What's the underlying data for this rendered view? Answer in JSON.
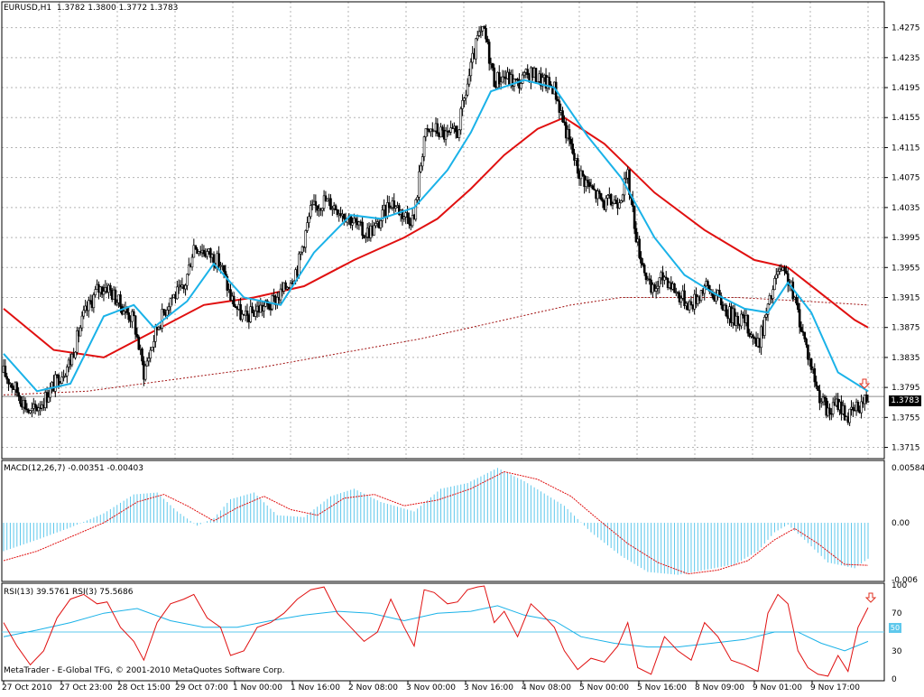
{
  "chart_data": [
    {
      "type": "candlestick",
      "symbol_title": "EURUSD,H1",
      "ohlc_readout": "1.3782 1.3800 1.3772 1.3783",
      "last_price_label": "1.3783",
      "y_ticks": [
        "1.4275",
        "1.4235",
        "1.4195",
        "1.4155",
        "1.4115",
        "1.4075",
        "1.4035",
        "1.3995",
        "1.3955",
        "1.3915",
        "1.3875",
        "1.3835",
        "1.3795",
        "1.3755",
        "1.3715"
      ],
      "ylim": [
        1.37,
        1.4295
      ],
      "grid": true,
      "series": [
        {
          "name": "fast MA",
          "color": "#1ab2e8"
        },
        {
          "name": "slow MA",
          "color": "#e01010"
        },
        {
          "name": "long MA",
          "color": "#a01010"
        }
      ],
      "close_path": [
        [
          0,
          1.3815
        ],
        [
          8,
          1.379
        ],
        [
          16,
          1.376
        ],
        [
          24,
          1.3778
        ],
        [
          32,
          1.3805
        ],
        [
          40,
          1.383
        ],
        [
          48,
          1.389
        ],
        [
          56,
          1.3925
        ],
        [
          62,
          1.393
        ],
        [
          70,
          1.3905
        ],
        [
          78,
          1.3885
        ],
        [
          84,
          1.3815
        ],
        [
          92,
          1.3875
        ],
        [
          100,
          1.3915
        ],
        [
          108,
          1.3925
        ],
        [
          114,
          1.3985
        ],
        [
          122,
          1.3975
        ],
        [
          130,
          1.396
        ],
        [
          136,
          1.3915
        ],
        [
          144,
          1.3885
        ],
        [
          152,
          1.39
        ],
        [
          160,
          1.3905
        ],
        [
          168,
          1.3925
        ],
        [
          176,
          1.3955
        ],
        [
          184,
          1.403
        ],
        [
          192,
          1.4045
        ],
        [
          200,
          1.4035
        ],
        [
          208,
          1.402
        ],
        [
          216,
          1.4
        ],
        [
          224,
          1.401
        ],
        [
          232,
          1.4045
        ],
        [
          240,
          1.4025
        ],
        [
          246,
          1.402
        ],
        [
          252,
          1.413
        ],
        [
          258,
          1.414
        ],
        [
          266,
          1.413
        ],
        [
          272,
          1.4135
        ],
        [
          278,
          1.42
        ],
        [
          284,
          1.426
        ],
        [
          288,
          1.427
        ],
        [
          294,
          1.4205
        ],
        [
          300,
          1.421
        ],
        [
          308,
          1.42
        ],
        [
          316,
          1.4215
        ],
        [
          322,
          1.4205
        ],
        [
          330,
          1.4195
        ],
        [
          336,
          1.4145
        ],
        [
          344,
          1.4085
        ],
        [
          352,
          1.406
        ],
        [
          360,
          1.404
        ],
        [
          368,
          1.4045
        ],
        [
          374,
          1.4075
        ],
        [
          380,
          1.3985
        ],
        [
          388,
          1.392
        ],
        [
          396,
          1.3945
        ],
        [
          404,
          1.392
        ],
        [
          412,
          1.3905
        ],
        [
          420,
          1.393
        ],
        [
          428,
          1.3915
        ],
        [
          436,
          1.389
        ],
        [
          444,
          1.3885
        ],
        [
          452,
          1.385
        ],
        [
          458,
          1.39
        ],
        [
          464,
          1.395
        ],
        [
          470,
          1.394
        ],
        [
          476,
          1.3895
        ],
        [
          482,
          1.384
        ],
        [
          488,
          1.379
        ],
        [
          494,
          1.376
        ],
        [
          500,
          1.3775
        ],
        [
          506,
          1.3755
        ],
        [
          512,
          1.377
        ],
        [
          518,
          1.3783
        ]
      ],
      "fast_ma": [
        [
          0,
          1.384
        ],
        [
          20,
          1.379
        ],
        [
          40,
          1.38
        ],
        [
          60,
          1.389
        ],
        [
          78,
          1.3905
        ],
        [
          90,
          1.3875
        ],
        [
          110,
          1.391
        ],
        [
          126,
          1.396
        ],
        [
          144,
          1.3915
        ],
        [
          166,
          1.3905
        ],
        [
          186,
          1.3975
        ],
        [
          208,
          1.4025
        ],
        [
          226,
          1.402
        ],
        [
          246,
          1.4035
        ],
        [
          266,
          1.4085
        ],
        [
          280,
          1.4135
        ],
        [
          292,
          1.419
        ],
        [
          312,
          1.4205
        ],
        [
          330,
          1.4195
        ],
        [
          350,
          1.413
        ],
        [
          370,
          1.4075
        ],
        [
          390,
          1.3995
        ],
        [
          408,
          1.3945
        ],
        [
          426,
          1.392
        ],
        [
          444,
          1.39
        ],
        [
          458,
          1.3895
        ],
        [
          470,
          1.3935
        ],
        [
          484,
          1.3895
        ],
        [
          500,
          1.3815
        ],
        [
          518,
          1.379
        ]
      ],
      "slow_ma": [
        [
          0,
          1.39
        ],
        [
          30,
          1.3845
        ],
        [
          60,
          1.3835
        ],
        [
          90,
          1.387
        ],
        [
          120,
          1.3905
        ],
        [
          150,
          1.3915
        ],
        [
          180,
          1.393
        ],
        [
          210,
          1.3965
        ],
        [
          240,
          1.3995
        ],
        [
          260,
          1.402
        ],
        [
          280,
          1.406
        ],
        [
          300,
          1.4105
        ],
        [
          320,
          1.414
        ],
        [
          336,
          1.4155
        ],
        [
          360,
          1.412
        ],
        [
          390,
          1.4055
        ],
        [
          420,
          1.4005
        ],
        [
          450,
          1.3965
        ],
        [
          470,
          1.3955
        ],
        [
          490,
          1.392
        ],
        [
          510,
          1.3885
        ],
        [
          518,
          1.3875
        ]
      ],
      "long_ma": [
        [
          0,
          1.3785
        ],
        [
          50,
          1.379
        ],
        [
          100,
          1.3805
        ],
        [
          150,
          1.382
        ],
        [
          200,
          1.384
        ],
        [
          250,
          1.386
        ],
        [
          300,
          1.3885
        ],
        [
          340,
          1.3905
        ],
        [
          370,
          1.3915
        ],
        [
          400,
          1.3915
        ],
        [
          440,
          1.3915
        ],
        [
          480,
          1.391
        ],
        [
          518,
          1.3905
        ]
      ],
      "signal_arrow": {
        "color": "#e03020"
      }
    },
    {
      "type": "histogram",
      "label": "MACD(12,26,7) -0.00351 -0.00403",
      "y_ticks": [
        "0.00584",
        "0.00",
        "-0.006"
      ],
      "ylim": [
        -0.0062,
        0.0064
      ],
      "histogram_color": "#5ec8ec",
      "signal_color": "#e01010",
      "histogram": [
        [
          0,
          -0.003
        ],
        [
          20,
          -0.0018
        ],
        [
          40,
          -0.0005
        ],
        [
          60,
          0.001
        ],
        [
          78,
          0.003
        ],
        [
          92,
          0.0032
        ],
        [
          104,
          0.0012
        ],
        [
          116,
          -0.0003
        ],
        [
          126,
          0.0005
        ],
        [
          136,
          0.0025
        ],
        [
          150,
          0.0032
        ],
        [
          164,
          0.0008
        ],
        [
          180,
          0.0006
        ],
        [
          196,
          0.0028
        ],
        [
          210,
          0.0036
        ],
        [
          226,
          0.0022
        ],
        [
          246,
          0.0012
        ],
        [
          262,
          0.0036
        ],
        [
          278,
          0.0042
        ],
        [
          296,
          0.0058
        ],
        [
          312,
          0.0044
        ],
        [
          336,
          0.0018
        ],
        [
          352,
          -0.001
        ],
        [
          370,
          -0.0035
        ],
        [
          386,
          -0.0052
        ],
        [
          404,
          -0.0055
        ],
        [
          420,
          -0.005
        ],
        [
          438,
          -0.0044
        ],
        [
          452,
          -0.003
        ],
        [
          462,
          -0.001
        ],
        [
          470,
          -0.0002
        ],
        [
          480,
          -0.0018
        ],
        [
          494,
          -0.0042
        ],
        [
          510,
          -0.0048
        ],
        [
          518,
          -0.0038
        ]
      ],
      "signal": [
        [
          0,
          -0.004
        ],
        [
          20,
          -0.003
        ],
        [
          40,
          -0.0015
        ],
        [
          60,
          0.0
        ],
        [
          80,
          0.0022
        ],
        [
          96,
          0.003
        ],
        [
          110,
          0.0018
        ],
        [
          126,
          0.0002
        ],
        [
          140,
          0.0016
        ],
        [
          156,
          0.0028
        ],
        [
          172,
          0.0014
        ],
        [
          188,
          0.0008
        ],
        [
          204,
          0.0026
        ],
        [
          222,
          0.003
        ],
        [
          240,
          0.0018
        ],
        [
          260,
          0.0024
        ],
        [
          280,
          0.0036
        ],
        [
          300,
          0.0054
        ],
        [
          320,
          0.0046
        ],
        [
          340,
          0.0028
        ],
        [
          356,
          0.0004
        ],
        [
          374,
          -0.0022
        ],
        [
          392,
          -0.0042
        ],
        [
          410,
          -0.0054
        ],
        [
          428,
          -0.005
        ],
        [
          446,
          -0.004
        ],
        [
          462,
          -0.0018
        ],
        [
          474,
          -0.0006
        ],
        [
          488,
          -0.0022
        ],
        [
          504,
          -0.0044
        ],
        [
          518,
          -0.0045
        ]
      ]
    },
    {
      "type": "line",
      "label": "RSI(13) 39.5761  RSI(3) 75.5686",
      "y_ticks": [
        "100",
        "70",
        "50",
        "30",
        "0"
      ],
      "level_label": "50",
      "ylim": [
        0,
        100
      ],
      "series": [
        {
          "name": "RSI(13)",
          "color": "#1ab2e8",
          "values": [
            [
              0,
              45
            ],
            [
              20,
              52
            ],
            [
              40,
              60
            ],
            [
              60,
              70
            ],
            [
              80,
              75
            ],
            [
              100,
              62
            ],
            [
              120,
              55
            ],
            [
              140,
              55
            ],
            [
              160,
              62
            ],
            [
              180,
              68
            ],
            [
              200,
              72
            ],
            [
              220,
              70
            ],
            [
              240,
              62
            ],
            [
              260,
              70
            ],
            [
              280,
              72
            ],
            [
              296,
              78
            ],
            [
              312,
              68
            ],
            [
              330,
              62
            ],
            [
              346,
              45
            ],
            [
              366,
              38
            ],
            [
              386,
              34
            ],
            [
              404,
              34
            ],
            [
              424,
              38
            ],
            [
              444,
              42
            ],
            [
              462,
              50
            ],
            [
              476,
              50
            ],
            [
              490,
              38
            ],
            [
              504,
              30
            ],
            [
              518,
              40
            ]
          ]
        },
        {
          "name": "RSI(3)",
          "color": "#e01010",
          "values": [
            [
              0,
              60
            ],
            [
              8,
              35
            ],
            [
              16,
              15
            ],
            [
              24,
              30
            ],
            [
              32,
              65
            ],
            [
              40,
              85
            ],
            [
              48,
              90
            ],
            [
              56,
              80
            ],
            [
              62,
              82
            ],
            [
              70,
              55
            ],
            [
              78,
              40
            ],
            [
              84,
              20
            ],
            [
              92,
              60
            ],
            [
              100,
              80
            ],
            [
              108,
              85
            ],
            [
              114,
              90
            ],
            [
              122,
              65
            ],
            [
              130,
              55
            ],
            [
              136,
              25
            ],
            [
              144,
              30
            ],
            [
              152,
              55
            ],
            [
              160,
              60
            ],
            [
              168,
              70
            ],
            [
              176,
              85
            ],
            [
              184,
              95
            ],
            [
              192,
              98
            ],
            [
              200,
              70
            ],
            [
              208,
              55
            ],
            [
              216,
              40
            ],
            [
              224,
              50
            ],
            [
              232,
              85
            ],
            [
              240,
              55
            ],
            [
              246,
              35
            ],
            [
              252,
              95
            ],
            [
              258,
              92
            ],
            [
              266,
              80
            ],
            [
              272,
              82
            ],
            [
              278,
              95
            ],
            [
              284,
              98
            ],
            [
              288,
              99
            ],
            [
              294,
              60
            ],
            [
              300,
              72
            ],
            [
              308,
              45
            ],
            [
              316,
              80
            ],
            [
              322,
              70
            ],
            [
              330,
              55
            ],
            [
              336,
              30
            ],
            [
              344,
              10
            ],
            [
              352,
              22
            ],
            [
              360,
              18
            ],
            [
              368,
              35
            ],
            [
              374,
              60
            ],
            [
              380,
              12
            ],
            [
              388,
              5
            ],
            [
              396,
              45
            ],
            [
              404,
              30
            ],
            [
              412,
              20
            ],
            [
              420,
              60
            ],
            [
              428,
              45
            ],
            [
              436,
              20
            ],
            [
              444,
              15
            ],
            [
              452,
              8
            ],
            [
              458,
              70
            ],
            [
              464,
              90
            ],
            [
              470,
              80
            ],
            [
              476,
              30
            ],
            [
              482,
              12
            ],
            [
              488,
              5
            ],
            [
              494,
              3
            ],
            [
              500,
              25
            ],
            [
              506,
              8
            ],
            [
              512,
              55
            ],
            [
              518,
              76
            ]
          ]
        }
      ]
    }
  ],
  "footer": {
    "copyright": "MetaTrader - E-Global TFG, © 2001-2010 MetaQuotes Software Corp."
  },
  "x_axis": {
    "labels": [
      "27 Oct 2010",
      "27 Oct 23:00",
      "28 Oct 15:00",
      "29 Oct 07:00",
      "1 Nov 00:00",
      "1 Nov 16:00",
      "2 Nov 08:00",
      "3 Nov 00:00",
      "3 Nov 16:00",
      "4 Nov 08:00",
      "5 Nov 00:00",
      "5 Nov 16:00",
      "8 Nov 09:00",
      "9 Nov 01:00",
      "9 Nov 17:00"
    ]
  }
}
